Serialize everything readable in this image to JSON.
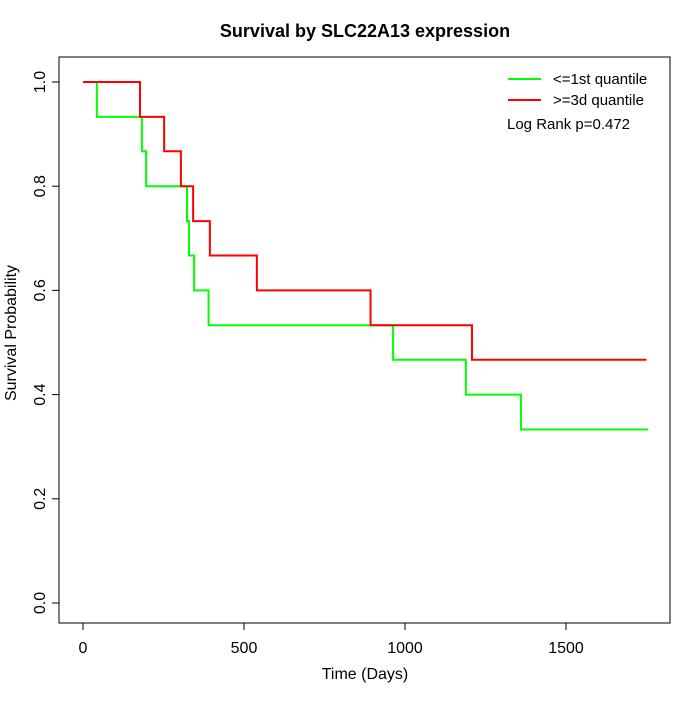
{
  "title": "Survival by SLC22A13 expression",
  "axes": {
    "xlabel": "Time (Days)",
    "ylabel": "Survival Probability",
    "x_tick_labels": [
      "0",
      "500",
      "1000",
      "1500"
    ],
    "y_tick_labels": [
      "0.0",
      "0.2",
      "0.4",
      "0.6",
      "0.8",
      "1.0"
    ]
  },
  "legend": {
    "items": [
      {
        "label": "<=1st quantile",
        "color": "#00ff00"
      },
      {
        "label": ">=3d quantile",
        "color": "#ff0000"
      }
    ],
    "annotation": "Log Rank p=0.472"
  },
  "chart_data": {
    "type": "line",
    "subtype": "kaplan-meier-step",
    "title": "Survival by SLC22A13 expression",
    "xlabel": "Time (Days)",
    "ylabel": "Survival Probability",
    "xlim": [
      -75,
      1825
    ],
    "ylim": [
      -0.04,
      1.05
    ],
    "x_ticks": [
      0,
      500,
      1000,
      1500
    ],
    "y_ticks": [
      0,
      0.2,
      0.4,
      0.6,
      0.8,
      1.0
    ],
    "grid": false,
    "legend_position": "topright",
    "annotation": "Log Rank p=0.472",
    "series": [
      {
        "name": "<=1st quantile",
        "color": "#00ff00",
        "points": [
          [
            0,
            1.0
          ],
          [
            43,
            0.933
          ],
          [
            183,
            0.867
          ],
          [
            196,
            0.8
          ],
          [
            323,
            0.733
          ],
          [
            329,
            0.667
          ],
          [
            345,
            0.6
          ],
          [
            390,
            0.533
          ],
          [
            963,
            0.467
          ],
          [
            1189,
            0.4
          ],
          [
            1360,
            0.333
          ],
          [
            1755,
            0.333
          ]
        ]
      },
      {
        "name": ">=3d quantile",
        "color": "#ff0000",
        "points": [
          [
            0,
            1.0
          ],
          [
            177,
            0.933
          ],
          [
            252,
            0.867
          ],
          [
            304,
            0.8
          ],
          [
            342,
            0.733
          ],
          [
            394,
            0.667
          ],
          [
            540,
            0.6
          ],
          [
            893,
            0.533
          ],
          [
            1208,
            0.467
          ],
          [
            1750,
            0.467
          ]
        ]
      }
    ]
  }
}
